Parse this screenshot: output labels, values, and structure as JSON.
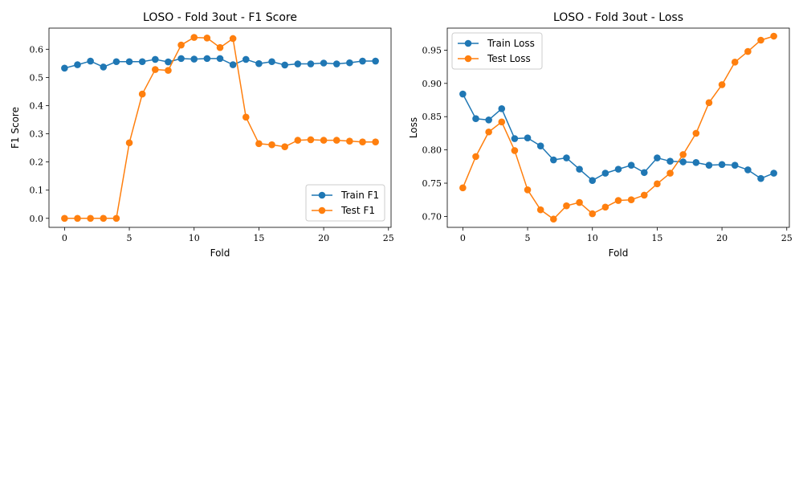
{
  "chart_data": [
    {
      "type": "line",
      "title": "LOSO - Fold 3out - F1 Score",
      "xlabel": "Fold",
      "ylabel": "F1 Score",
      "x": [
        0,
        1,
        2,
        3,
        4,
        5,
        6,
        7,
        8,
        9,
        10,
        11,
        12,
        13,
        14,
        15,
        16,
        17,
        18,
        19,
        20,
        21,
        22,
        23,
        24
      ],
      "xlim": [
        -1.2,
        25.2
      ],
      "ylim": [
        -0.032,
        0.675
      ],
      "xticks": [
        0,
        5,
        10,
        15,
        20,
        25
      ],
      "xtick_labels": [
        "0",
        "5",
        "10",
        "15",
        "20",
        "25"
      ],
      "yticks": [
        0.0,
        0.1,
        0.2,
        0.3,
        0.4,
        0.5,
        0.6
      ],
      "ytick_labels": [
        "0.0",
        "0.1",
        "0.2",
        "0.3",
        "0.4",
        "0.5",
        "0.6"
      ],
      "grid": false,
      "legend_position": "lower-right",
      "series": [
        {
          "name": "Train F1",
          "color": "#1f77b4",
          "values": [
            0.533,
            0.545,
            0.558,
            0.537,
            0.556,
            0.556,
            0.556,
            0.564,
            0.555,
            0.567,
            0.565,
            0.567,
            0.567,
            0.545,
            0.564,
            0.549,
            0.556,
            0.544,
            0.548,
            0.548,
            0.551,
            0.548,
            0.552,
            0.558,
            0.558
          ]
        },
        {
          "name": "Test F1",
          "color": "#ff7f0e",
          "values": [
            0.0,
            0.0,
            0.0,
            0.0,
            0.0,
            0.268,
            0.441,
            0.528,
            0.525,
            0.615,
            0.642,
            0.64,
            0.606,
            0.638,
            0.359,
            0.265,
            0.261,
            0.254,
            0.277,
            0.279,
            0.277,
            0.277,
            0.274,
            0.271,
            0.271
          ]
        }
      ]
    },
    {
      "type": "line",
      "title": "LOSO - Fold 3out - Loss",
      "xlabel": "Fold",
      "ylabel": "Loss",
      "x": [
        0,
        1,
        2,
        3,
        4,
        5,
        6,
        7,
        8,
        9,
        10,
        11,
        12,
        13,
        14,
        15,
        16,
        17,
        18,
        19,
        20,
        21,
        22,
        23,
        24
      ],
      "xlim": [
        -1.2,
        25.2
      ],
      "ylim": [
        0.6836,
        0.9831
      ],
      "xticks": [
        0,
        5,
        10,
        15,
        20,
        25
      ],
      "xtick_labels": [
        "0",
        "5",
        "10",
        "15",
        "20",
        "25"
      ],
      "yticks": [
        0.7,
        0.75,
        0.8,
        0.85,
        0.9,
        0.95
      ],
      "ytick_labels": [
        "0.70",
        "0.75",
        "0.80",
        "0.85",
        "0.90",
        "0.95"
      ],
      "grid": false,
      "legend_position": "upper-left",
      "series": [
        {
          "name": "Train Loss",
          "color": "#1f77b4",
          "values": [
            0.884,
            0.847,
            0.845,
            0.862,
            0.817,
            0.818,
            0.806,
            0.785,
            0.788,
            0.771,
            0.754,
            0.765,
            0.771,
            0.777,
            0.766,
            0.788,
            0.783,
            0.782,
            0.781,
            0.777,
            0.778,
            0.777,
            0.77,
            0.757,
            0.765
          ]
        },
        {
          "name": "Test Loss",
          "color": "#ff7f0e",
          "values": [
            0.743,
            0.79,
            0.827,
            0.842,
            0.799,
            0.74,
            0.71,
            0.696,
            0.716,
            0.721,
            0.704,
            0.714,
            0.724,
            0.725,
            0.732,
            0.749,
            0.765,
            0.793,
            0.825,
            0.871,
            0.898,
            0.932,
            0.948,
            0.965,
            0.971
          ]
        }
      ]
    }
  ]
}
